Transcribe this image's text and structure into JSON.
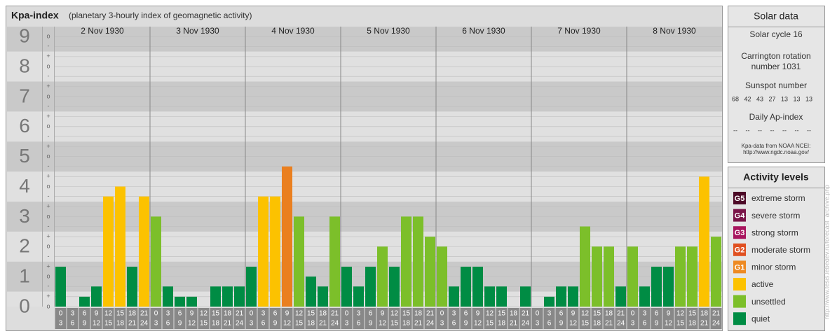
{
  "header": {
    "title": "Kpa-index",
    "subtitle": "(planetary 3-hourly index of geomagnetic activity)"
  },
  "chart_data": {
    "type": "bar",
    "ylim": [
      0,
      9.33
    ],
    "yticks": [
      0,
      1,
      2,
      3,
      4,
      5,
      6,
      7,
      8,
      9
    ],
    "minor_yticks": [
      {
        "value": 0,
        "label": "o"
      },
      {
        "value": 0.33,
        "label": "+"
      },
      {
        "value": 0.67,
        "label": "-"
      },
      {
        "value": 1,
        "label": "o"
      },
      {
        "value": 1.33,
        "label": "+"
      },
      {
        "value": 1.67,
        "label": "-"
      },
      {
        "value": 2,
        "label": "o"
      },
      {
        "value": 2.33,
        "label": "+"
      },
      {
        "value": 2.67,
        "label": "-"
      },
      {
        "value": 3,
        "label": "o"
      },
      {
        "value": 3.33,
        "label": "+"
      },
      {
        "value": 3.67,
        "label": "-"
      },
      {
        "value": 4,
        "label": "o"
      },
      {
        "value": 4.33,
        "label": "+"
      },
      {
        "value": 4.67,
        "label": "-"
      },
      {
        "value": 5,
        "label": "o"
      },
      {
        "value": 5.33,
        "label": "+"
      },
      {
        "value": 5.67,
        "label": "-"
      },
      {
        "value": 6,
        "label": "o"
      },
      {
        "value": 6.33,
        "label": "+"
      },
      {
        "value": 6.67,
        "label": "-"
      },
      {
        "value": 7,
        "label": "o"
      },
      {
        "value": 7.33,
        "label": "+"
      },
      {
        "value": 7.67,
        "label": "-"
      },
      {
        "value": 8,
        "label": "o"
      },
      {
        "value": 8.33,
        "label": "+"
      },
      {
        "value": 8.67,
        "label": "-"
      },
      {
        "value": 9,
        "label": "o"
      }
    ],
    "hours": [
      [
        "0",
        "3"
      ],
      [
        "3",
        "6"
      ],
      [
        "6",
        "9"
      ],
      [
        "9",
        "12"
      ],
      [
        "12",
        "15"
      ],
      [
        "15",
        "18"
      ],
      [
        "18",
        "21"
      ],
      [
        "21",
        "24"
      ]
    ],
    "days": [
      {
        "label": "2 Nov 1930",
        "values": [
          1.33,
          0,
          0.33,
          0.67,
          3.67,
          4,
          1.33,
          3.67
        ],
        "colors": [
          "#008c44",
          "#008c44",
          "#008c44",
          "#008c44",
          "#fcc200",
          "#fcc200",
          "#008c44",
          "#fcc200"
        ]
      },
      {
        "label": "3 Nov 1930",
        "values": [
          3,
          0.67,
          0.33,
          0.33,
          0,
          0.67,
          0.67,
          0.67
        ],
        "colors": [
          "#7cbf2a",
          "#008c44",
          "#008c44",
          "#008c44",
          "#008c44",
          "#008c44",
          "#008c44",
          "#008c44"
        ]
      },
      {
        "label": "4 Nov 1930",
        "values": [
          1.33,
          3.67,
          3.67,
          4.67,
          3,
          1,
          0.67,
          3
        ],
        "colors": [
          "#008c44",
          "#fcc200",
          "#fcc200",
          "#ea7f1f",
          "#7cbf2a",
          "#008c44",
          "#008c44",
          "#7cbf2a"
        ]
      },
      {
        "label": "5 Nov 1930",
        "values": [
          1.33,
          0.67,
          1.33,
          2,
          1.33,
          3,
          3,
          2.33
        ],
        "colors": [
          "#008c44",
          "#008c44",
          "#008c44",
          "#7cbf2a",
          "#008c44",
          "#7cbf2a",
          "#7cbf2a",
          "#7cbf2a"
        ]
      },
      {
        "label": "6 Nov 1930",
        "values": [
          2,
          0.67,
          1.33,
          1.33,
          0.67,
          0.67,
          0,
          0.67
        ],
        "colors": [
          "#7cbf2a",
          "#008c44",
          "#008c44",
          "#008c44",
          "#008c44",
          "#008c44",
          "#008c44",
          "#008c44"
        ]
      },
      {
        "label": "7 Nov 1930",
        "values": [
          0,
          0.33,
          0.67,
          0.67,
          2.67,
          2,
          2,
          0.67
        ],
        "colors": [
          "#008c44",
          "#008c44",
          "#008c44",
          "#008c44",
          "#7cbf2a",
          "#7cbf2a",
          "#7cbf2a",
          "#008c44"
        ]
      },
      {
        "label": "8 Nov 1930",
        "values": [
          2,
          0.67,
          1.33,
          1.33,
          2,
          2,
          4.33,
          2.33
        ],
        "colors": [
          "#7cbf2a",
          "#008c44",
          "#008c44",
          "#008c44",
          "#7cbf2a",
          "#7cbf2a",
          "#fcc200",
          "#7cbf2a"
        ]
      }
    ]
  },
  "solar_data": {
    "title": "Solar data",
    "solar_cycle": "Solar cycle 16",
    "carrington": [
      "Carrington rotation",
      "number 1031"
    ],
    "sunspot_title": "Sunspot number",
    "sunspots": [
      68,
      42,
      43,
      27,
      13,
      13,
      13
    ],
    "ap_title": "Daily Ap-index",
    "ap": [
      "--",
      "--",
      "--",
      "--",
      "--",
      "--",
      "--"
    ],
    "source": [
      "Kpa-data from NOAA NCEI:",
      "http://www.ngdc.noaa.gov/"
    ]
  },
  "activity_levels": {
    "title": "Activity levels",
    "levels": [
      {
        "badge": "G5",
        "label": "extreme storm",
        "color": "#4d0a27"
      },
      {
        "badge": "G4",
        "label": "severe storm",
        "color": "#7a1448"
      },
      {
        "badge": "G3",
        "label": "strong storm",
        "color": "#a8155e"
      },
      {
        "badge": "G2",
        "label": "moderate storm",
        "color": "#e05020"
      },
      {
        "badge": "G1",
        "label": "minor storm",
        "color": "#ee8a22"
      },
      {
        "label": "active",
        "color": "#fcc200"
      },
      {
        "label": "unsettled",
        "color": "#7cbf2a"
      },
      {
        "label": "quiet",
        "color": "#008c44"
      }
    ]
  },
  "watermark": "http://www.tesis.lebedev.ru/forecast_archive.php"
}
